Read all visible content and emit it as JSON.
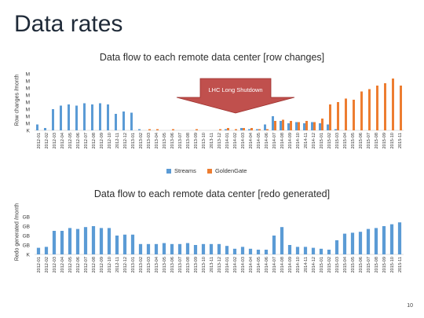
{
  "title": "Data rates",
  "page_number": "10",
  "colors": {
    "streams": "#5b9bd5",
    "goldengate": "#ed7d31",
    "arrow": "#c0504d",
    "arrow_edge": "#9c2f2c"
  },
  "chart_data": [
    {
      "type": "bar",
      "title": "Data flow to each remote data center [row changes]",
      "ylabel": "Row changes /month",
      "ytick_labels": [
        "M",
        "M",
        "M",
        "M",
        "M",
        "M",
        "M",
        "M",
        "K"
      ],
      "annotation": "LHC Long Shutdown",
      "legend": [
        "Streams",
        "GoldenGate"
      ],
      "categories": [
        "2012-01",
        "2012-02",
        "2012-03",
        "2012-04",
        "2012-05",
        "2012-06",
        "2012-07",
        "2012-08",
        "2012-09",
        "2012-10",
        "2012-11",
        "2012-12",
        "2013-01",
        "2013-02",
        "2013-03",
        "2013-04",
        "2013-05",
        "2013-06",
        "2013-07",
        "2013-08",
        "2013-09",
        "2013-10",
        "2013-11",
        "2013-12",
        "2014-01",
        "2014-02",
        "2014-03",
        "2014-04",
        "2014-05",
        "2014-06",
        "2014-07",
        "2014-08",
        "2014-09",
        "2014-10",
        "2014-11",
        "2014-12",
        "2015-01",
        "2015-02",
        "2015-03",
        "2015-04",
        "2015-05",
        "2015-06",
        "2015-07",
        "2015-08",
        "2015-09",
        "2015-10",
        "2015-11"
      ],
      "series": [
        {
          "name": "Streams",
          "values": [
            5,
            2,
            18,
            21,
            22,
            21,
            23,
            22,
            23,
            22,
            14,
            16,
            15,
            1,
            0,
            0,
            0,
            0,
            0,
            0,
            0,
            0,
            0,
            0,
            1,
            0,
            2,
            1,
            1,
            5,
            12,
            8,
            6,
            7,
            6,
            7,
            6,
            5,
            1,
            0,
            0,
            0,
            0,
            0,
            0,
            0,
            0
          ]
        },
        {
          "name": "GoldenGate",
          "values": [
            0,
            0,
            0,
            0,
            0,
            0,
            0,
            0,
            0,
            0,
            0,
            0,
            0,
            0,
            1,
            1,
            0,
            1,
            0,
            0,
            1,
            0,
            0,
            1,
            2,
            1,
            2,
            2,
            1,
            1,
            8,
            9,
            8,
            7,
            8,
            7,
            10,
            22,
            24,
            27,
            26,
            33,
            35,
            38,
            40,
            44,
            38
          ]
        }
      ],
      "ylim": [
        0,
        48
      ]
    },
    {
      "type": "bar",
      "title": "Data flow to each remote data center [redo generated]",
      "ylabel": "Redo generated /month",
      "ytick_labels": [
        "GB",
        "GB",
        "GB",
        "GB",
        "K"
      ],
      "categories": [
        "2012-01",
        "2012-02",
        "2012-03",
        "2012-04",
        "2012-05",
        "2012-06",
        "2012-07",
        "2012-08",
        "2012-09",
        "2012-10",
        "2012-11",
        "2012-12",
        "2013-01",
        "2013-02",
        "2013-03",
        "2013-04",
        "2013-05",
        "2013-06",
        "2013-07",
        "2013-08",
        "2013-09",
        "2013-10",
        "2013-11",
        "2013-12",
        "2014-01",
        "2014-02",
        "2014-03",
        "2014-04",
        "2014-05",
        "2014-06",
        "2014-07",
        "2014-08",
        "2014-09",
        "2014-10",
        "2014-11",
        "2014-12",
        "2015-01",
        "2015-02",
        "2015-03",
        "2015-04",
        "2015-05",
        "2015-06",
        "2015-07",
        "2015-08",
        "2015-09",
        "2015-10",
        "2015-11"
      ],
      "series": [
        {
          "name": "Streams",
          "values": [
            7,
            8,
            25,
            25,
            28,
            27,
            29,
            30,
            28,
            28,
            20,
            21,
            21,
            11,
            11,
            11,
            12,
            11,
            11,
            12,
            10,
            11,
            11,
            11,
            9,
            6,
            8,
            6,
            5,
            5,
            20,
            29,
            10,
            8,
            8,
            7,
            6,
            5,
            15,
            22,
            23,
            24,
            27,
            28,
            30,
            32,
            34
          ]
        }
      ],
      "ylim": [
        0,
        40
      ]
    }
  ]
}
